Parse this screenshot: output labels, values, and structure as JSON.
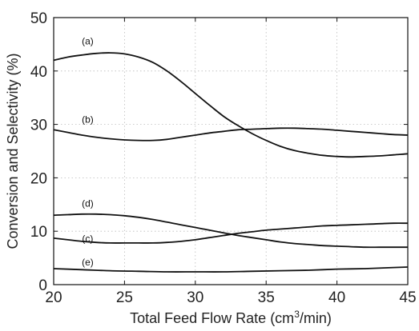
{
  "chart_data": {
    "type": "line",
    "title": "",
    "xlabel": "Total Feed Flow Rate (cm³/min)",
    "xlabel_parts": {
      "pre": "Total Feed Flow Rate (cm",
      "sup": "3",
      "post": "/min)"
    },
    "ylabel": "Conversion and Selectivity (%)",
    "xlim": [
      20,
      45
    ],
    "ylim": [
      0,
      50
    ],
    "xticks": [
      20,
      25,
      30,
      35,
      40,
      45
    ],
    "yticks": [
      0,
      10,
      20,
      30,
      40,
      50
    ],
    "grid": true,
    "legend": "none",
    "series": [
      {
        "name": "(a)",
        "x": [
          20,
          21,
          22,
          23,
          24,
          25,
          26,
          27,
          28,
          29,
          30,
          31,
          32,
          33,
          34,
          35,
          36,
          37,
          38,
          39,
          40,
          41,
          42,
          43,
          44,
          45
        ],
        "y": [
          42.0,
          42.6,
          43.0,
          43.3,
          43.4,
          43.2,
          42.6,
          41.6,
          40.0,
          38.0,
          35.8,
          33.6,
          31.5,
          29.8,
          28.3,
          27.0,
          25.9,
          25.1,
          24.6,
          24.2,
          24.0,
          23.9,
          24.0,
          24.1,
          24.3,
          24.5
        ],
        "label_at": [
          22.4,
          45.0
        ]
      },
      {
        "name": "(b)",
        "x": [
          20,
          21,
          22,
          23,
          24,
          25,
          26,
          27,
          28,
          29,
          30,
          31,
          32,
          33,
          34,
          35,
          36,
          37,
          38,
          39,
          40,
          41,
          42,
          43,
          44,
          45
        ],
        "y": [
          29.0,
          28.5,
          28.0,
          27.6,
          27.3,
          27.1,
          27.0,
          27.0,
          27.2,
          27.6,
          28.0,
          28.4,
          28.7,
          29.0,
          29.1,
          29.2,
          29.3,
          29.3,
          29.2,
          29.1,
          28.9,
          28.7,
          28.5,
          28.3,
          28.1,
          28.0
        ],
        "label_at": [
          22.4,
          30.3
        ]
      },
      {
        "name": "(c)",
        "x": [
          20,
          21,
          22,
          23,
          24,
          25,
          26,
          27,
          28,
          29,
          30,
          31,
          32,
          33,
          34,
          35,
          36,
          37,
          38,
          39,
          40,
          41,
          42,
          43,
          44,
          45
        ],
        "y": [
          8.7,
          8.4,
          8.1,
          7.9,
          7.8,
          7.8,
          7.8,
          7.8,
          7.9,
          8.1,
          8.4,
          8.8,
          9.2,
          9.6,
          9.9,
          10.2,
          10.4,
          10.6,
          10.8,
          11.0,
          11.1,
          11.2,
          11.3,
          11.4,
          11.5,
          11.5
        ],
        "label_at": [
          22.4,
          8.0
        ]
      },
      {
        "name": "(d)",
        "x": [
          20,
          21,
          22,
          23,
          24,
          25,
          26,
          27,
          28,
          29,
          30,
          31,
          32,
          33,
          34,
          35,
          36,
          37,
          38,
          39,
          40,
          41,
          42,
          43,
          44,
          45
        ],
        "y": [
          13.0,
          13.1,
          13.2,
          13.2,
          13.1,
          12.9,
          12.6,
          12.2,
          11.7,
          11.2,
          10.7,
          10.2,
          9.7,
          9.2,
          8.8,
          8.4,
          8.0,
          7.7,
          7.5,
          7.3,
          7.2,
          7.1,
          7.0,
          7.0,
          7.0,
          7.0
        ],
        "label_at": [
          22.4,
          14.6
        ]
      },
      {
        "name": "(e)",
        "x": [
          20,
          22,
          24,
          26,
          28,
          30,
          32,
          34,
          36,
          38,
          40,
          42,
          44,
          45
        ],
        "y": [
          3.0,
          2.8,
          2.6,
          2.5,
          2.4,
          2.4,
          2.4,
          2.5,
          2.6,
          2.7,
          2.9,
          3.0,
          3.2,
          3.3
        ],
        "label_at": [
          22.4,
          3.6
        ]
      }
    ]
  }
}
